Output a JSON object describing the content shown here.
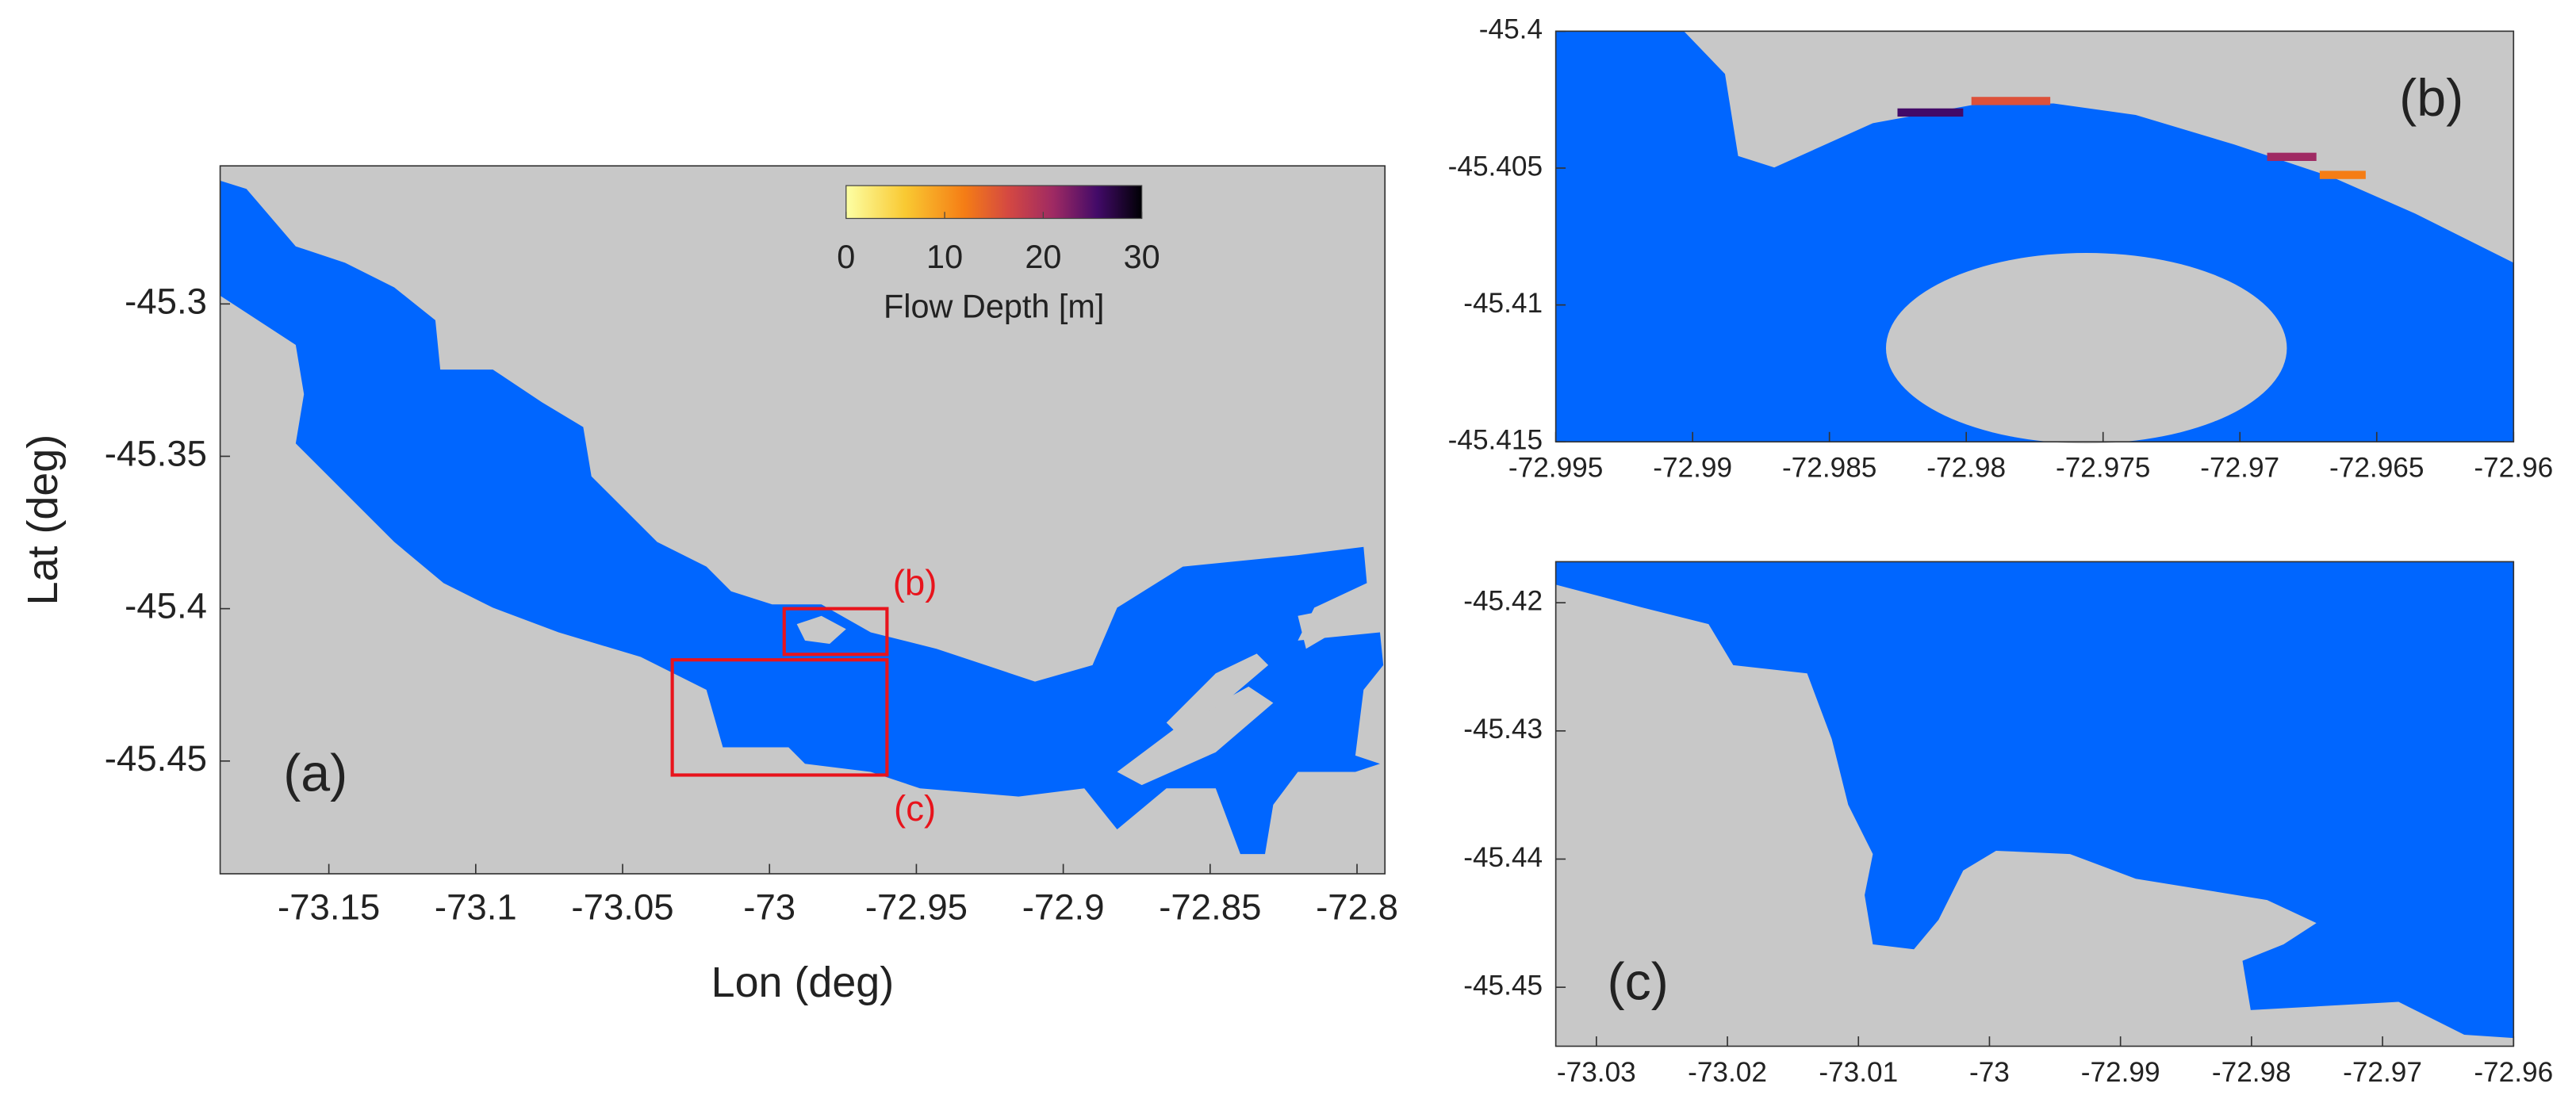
{
  "chart_data": [
    {
      "type": "map",
      "xlabel": "Lon (deg)",
      "ylabel": "Lat (deg)",
      "xlim": [
        -73.187,
        -72.7905
      ],
      "ylim": [
        -45.487,
        -45.2547
      ],
      "xticks": [
        -73.15,
        -73.1,
        -73.05,
        -73,
        -72.95,
        -72.9,
        -72.85,
        -72.8
      ],
      "yticks": [
        -45.45,
        -45.4,
        -45.35,
        -45.3
      ],
      "panel_label": "(a)",
      "annotations": [
        "(b)",
        "(c)"
      ],
      "box_color": "#e8141c",
      "colorbar": {
        "label": "Flow Depth [m]",
        "clim": [
          0,
          30
        ],
        "ticks": [
          0,
          10,
          20,
          30
        ]
      },
      "water_color": "#0066ff",
      "land_color": "#c8c8c8"
    },
    {
      "type": "map",
      "xlim": [
        -72.995,
        -72.96
      ],
      "ylim": [
        -45.415,
        -45.4
      ],
      "xticks": [
        -72.995,
        -72.99,
        -72.985,
        -72.98,
        -72.975,
        -72.97,
        -72.965,
        -72.96
      ],
      "yticks": [
        -45.415,
        -45.41,
        -45.405,
        -45.4
      ],
      "panel_label": "(b)",
      "water_color": "#0066ff",
      "land_color": "#c8c8c8"
    },
    {
      "type": "map",
      "xlim": [
        -73.0331,
        -72.96
      ],
      "ylim": [
        -45.4546,
        -45.4168
      ],
      "xticks": [
        -73.03,
        -73.02,
        -73.01,
        -73,
        -72.99,
        -72.98,
        -72.97,
        -72.96
      ],
      "yticks": [
        -45.45,
        -45.44,
        -45.43,
        -45.42
      ],
      "panel_label": "(c)",
      "water_color": "#0066ff",
      "land_color": "#c8c8c8"
    }
  ]
}
